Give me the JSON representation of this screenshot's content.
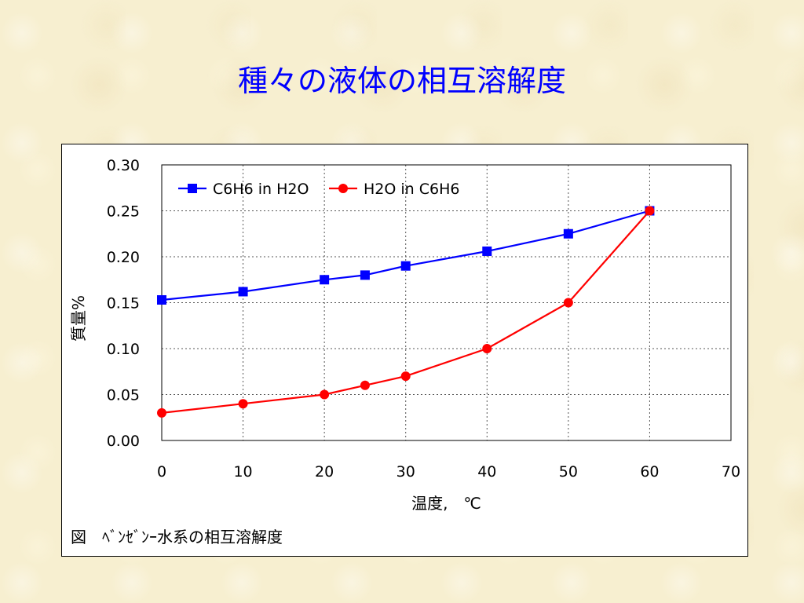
{
  "slide": {
    "title": "種々の液体の相互溶解度",
    "caption": "図　ﾍﾞﾝｾﾞﾝｰ水系の相互溶解度"
  },
  "colors": {
    "background": "#f7efd0",
    "title": "#0000ff",
    "series_blue": "#0000ff",
    "series_red": "#ff0000",
    "grid": "#555555"
  },
  "chart_data": {
    "type": "line",
    "xlabel": "温度,　℃",
    "ylabel": "質量%",
    "xlim": [
      0,
      70
    ],
    "ylim": [
      0,
      0.3
    ],
    "x_ticks": [
      "0",
      "10",
      "20",
      "30",
      "40",
      "50",
      "60",
      "70"
    ],
    "y_ticks": [
      "0.00",
      "0.05",
      "0.10",
      "0.15",
      "0.20",
      "0.25",
      "0.30"
    ],
    "grid": true,
    "legend_position": "top-left",
    "series": [
      {
        "name": "C6H6 in H2O",
        "color": "#0000ff",
        "marker": "square",
        "x": [
          0,
          10,
          20,
          25,
          30,
          40,
          50,
          60
        ],
        "y": [
          0.153,
          0.162,
          0.175,
          0.18,
          0.19,
          0.206,
          0.225,
          0.25
        ]
      },
      {
        "name": "H2O in C6H6",
        "color": "#ff0000",
        "marker": "circle",
        "x": [
          0,
          10,
          20,
          25,
          30,
          40,
          50,
          60
        ],
        "y": [
          0.03,
          0.04,
          0.05,
          0.06,
          0.07,
          0.1,
          0.15,
          0.25
        ]
      }
    ]
  }
}
